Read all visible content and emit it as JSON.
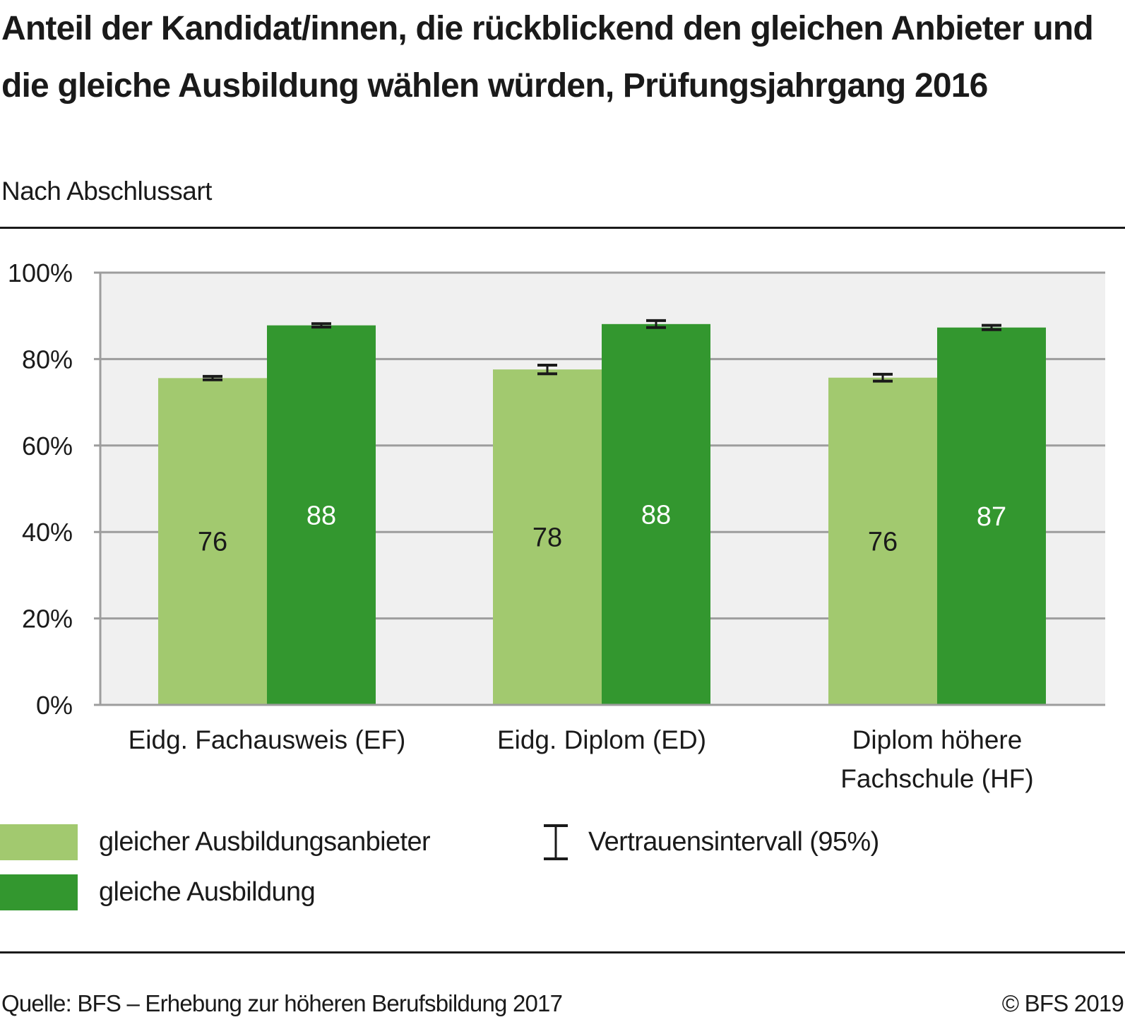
{
  "header": {
    "title": "Anteil der Kandidat/innen, die rückblickend den gleichen Anbieter und die gleiche Ausbildung wählen würden, Prüfungsjahrgang 2016",
    "subtitle": "Nach Abschlussart"
  },
  "footer": {
    "source": "Quelle: BFS – Erhebung zur höheren Berufsbildung 2017",
    "copyright": "© BFS 2019"
  },
  "legend": {
    "items": [
      {
        "label": "gleicher Ausbildungsanbieter",
        "color": "#a2c96f"
      },
      {
        "label": "gleiche Ausbildung",
        "color": "#33972f"
      }
    ],
    "ci_label": "Vertrauensintervall (95%)",
    "ci_icon": "error-bar-icon"
  },
  "chart_data": {
    "type": "bar",
    "title": "Anteil der Kandidat/innen, die rückblickend den gleichen Anbieter und die gleiche Ausbildung wählen würden, Prüfungsjahrgang 2016",
    "subtitle": "Nach Abschlussart",
    "xlabel": "",
    "ylabel": "",
    "ylim": [
      0,
      100
    ],
    "yticks": [
      0,
      20,
      40,
      60,
      80,
      100
    ],
    "ytick_labels": [
      "0%",
      "20%",
      "40%",
      "60%",
      "80%",
      "100%"
    ],
    "grid": true,
    "legend_position": "bottom",
    "categories": [
      "Eidg. Fachausweis (EF)",
      "Eidg. Diplom (ED)",
      "Diplom höhere Fachschule (HF)"
    ],
    "category_lines": [
      [
        "Eidg. Fachausweis (EF)"
      ],
      [
        "Eidg. Diplom (ED)"
      ],
      [
        "Diplom höhere",
        "Fachschule (HF)"
      ]
    ],
    "series": [
      {
        "name": "gleicher Ausbildungsanbieter",
        "color": "#a2c96f",
        "label_color": "#1a1a1a",
        "values": [
          75.6,
          77.6,
          75.7
        ],
        "labels": [
          "76",
          "78",
          "76"
        ],
        "ci": [
          [
            75.2,
            76.0
          ],
          [
            76.6,
            78.6
          ],
          [
            74.9,
            76.5
          ]
        ]
      },
      {
        "name": "gleiche Ausbildung",
        "color": "#33972f",
        "label_color": "#ffffff",
        "values": [
          87.8,
          88.1,
          87.3
        ],
        "labels": [
          "88",
          "88",
          "87"
        ],
        "ci": [
          [
            87.4,
            88.2
          ],
          [
            87.3,
            88.9
          ],
          [
            86.8,
            87.8
          ]
        ]
      }
    ]
  }
}
